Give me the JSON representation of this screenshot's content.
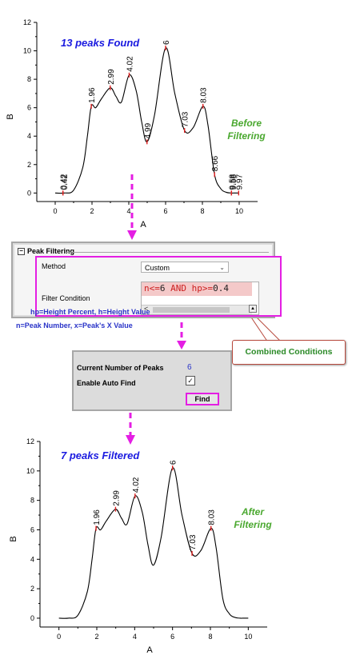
{
  "chart_data": [
    {
      "type": "line",
      "annotation": "13 peaks Found",
      "side_text": [
        "Before",
        "Filtering"
      ],
      "xlabel": "A",
      "ylabel": "B",
      "xlim": [
        -1,
        11
      ],
      "ylim": [
        -0.6,
        12
      ],
      "xticks": [
        0,
        2,
        4,
        6,
        8,
        10
      ],
      "yticks": [
        0,
        2,
        4,
        6,
        8,
        10,
        12
      ],
      "curve": {
        "x": [
          0,
          0.5,
          1,
          1.5,
          1.75,
          1.96,
          2.2,
          2.5,
          2.99,
          3.3,
          3.6,
          4.02,
          4.4,
          4.7,
          4.99,
          5.4,
          6,
          6.5,
          7.03,
          7.5,
          8.03,
          8.3,
          8.66,
          9,
          9.3,
          9.58,
          9.7,
          10
        ],
        "y": [
          0,
          0,
          0.2,
          1.8,
          4.0,
          6.1,
          6.0,
          6.6,
          7.4,
          6.8,
          6.4,
          8.3,
          7.2,
          5.0,
          3.6,
          5.5,
          10.2,
          7.0,
          4.4,
          4.6,
          6.1,
          4.8,
          1.3,
          0.3,
          0.05,
          0,
          0,
          0
        ]
      },
      "peaks": [
        {
          "x": 0.42,
          "y": 0,
          "label": "0.42"
        },
        {
          "x": 0.42,
          "y": 0,
          "label": "0.42"
        },
        {
          "x": 1.96,
          "y": 6.1,
          "label": "1.96"
        },
        {
          "x": 2.99,
          "y": 7.4,
          "label": "2.99"
        },
        {
          "x": 4.02,
          "y": 8.3,
          "label": "4.02"
        },
        {
          "x": 4.99,
          "y": 3.6,
          "label": "4.99"
        },
        {
          "x": 6,
          "y": 10.2,
          "label": "6"
        },
        {
          "x": 7.03,
          "y": 4.4,
          "label": "7.03"
        },
        {
          "x": 8.03,
          "y": 6.1,
          "label": "8.03"
        },
        {
          "x": 8.66,
          "y": 1.3,
          "label": "8.66"
        },
        {
          "x": 9.58,
          "y": 0,
          "label": "9.58"
        },
        {
          "x": 9.58,
          "y": 0,
          "label": "9.58"
        },
        {
          "x": 9.97,
          "y": 0,
          "label": "9.97"
        }
      ]
    },
    {
      "type": "line",
      "annotation": "7 peaks Filtered",
      "side_text": [
        "After",
        "Filtering"
      ],
      "xlabel": "A",
      "ylabel": "B",
      "xlim": [
        -1,
        11
      ],
      "ylim": [
        -0.6,
        12
      ],
      "xticks": [
        0,
        2,
        4,
        6,
        8,
        10
      ],
      "yticks": [
        0,
        2,
        4,
        6,
        8,
        10,
        12
      ],
      "curve": {
        "x": [
          0,
          0.5,
          1,
          1.5,
          1.75,
          1.96,
          2.2,
          2.5,
          2.99,
          3.3,
          3.6,
          4.02,
          4.4,
          4.7,
          4.99,
          5.4,
          6,
          6.5,
          7.03,
          7.5,
          8.03,
          8.3,
          8.66,
          9,
          9.3,
          9.58,
          9.7,
          10
        ],
        "y": [
          0,
          0,
          0.2,
          1.8,
          4.0,
          6.1,
          6.0,
          6.6,
          7.4,
          6.8,
          6.4,
          8.3,
          7.2,
          5.0,
          3.6,
          5.5,
          10.2,
          7.0,
          4.4,
          4.6,
          6.1,
          4.8,
          1.3,
          0.3,
          0.05,
          0,
          0,
          0
        ]
      },
      "peaks": [
        {
          "x": 1.96,
          "y": 6.1,
          "label": "1.96"
        },
        {
          "x": 2.99,
          "y": 7.4,
          "label": "2.99"
        },
        {
          "x": 4.02,
          "y": 8.3,
          "label": "4.02"
        },
        {
          "x": 6,
          "y": 10.2,
          "label": "6"
        },
        {
          "x": 7.03,
          "y": 4.4,
          "label": "7.03"
        },
        {
          "x": 8.03,
          "y": 6.1,
          "label": "8.03"
        }
      ]
    }
  ],
  "peak_filtering": {
    "header": "Peak Filtering",
    "method_label": "Method",
    "method_value": "Custom",
    "condition_label": "Filter Condition",
    "condition_parts": [
      "n<=",
      "6",
      " AND hp>=",
      "0.4"
    ],
    "scroll_left": "<",
    "hint_line1": "hp=Height Percent, h=Height Value",
    "hint_line2": "n=Peak Number, x=Peak's X Value"
  },
  "callout": "Combined Conditions",
  "peak_info": {
    "count_label": "Current Number of Peaks",
    "count_value": "6",
    "auto_find_label": "Enable Auto Find",
    "auto_find_checked": "☑",
    "find_button": "Find"
  },
  "colors": {
    "annotation": "#1a1ae0",
    "side_text": "#4aa82f",
    "flow_arrow": "#e41ee3",
    "peak_marker": "#e02020",
    "callout_border": "#b84a3e"
  }
}
